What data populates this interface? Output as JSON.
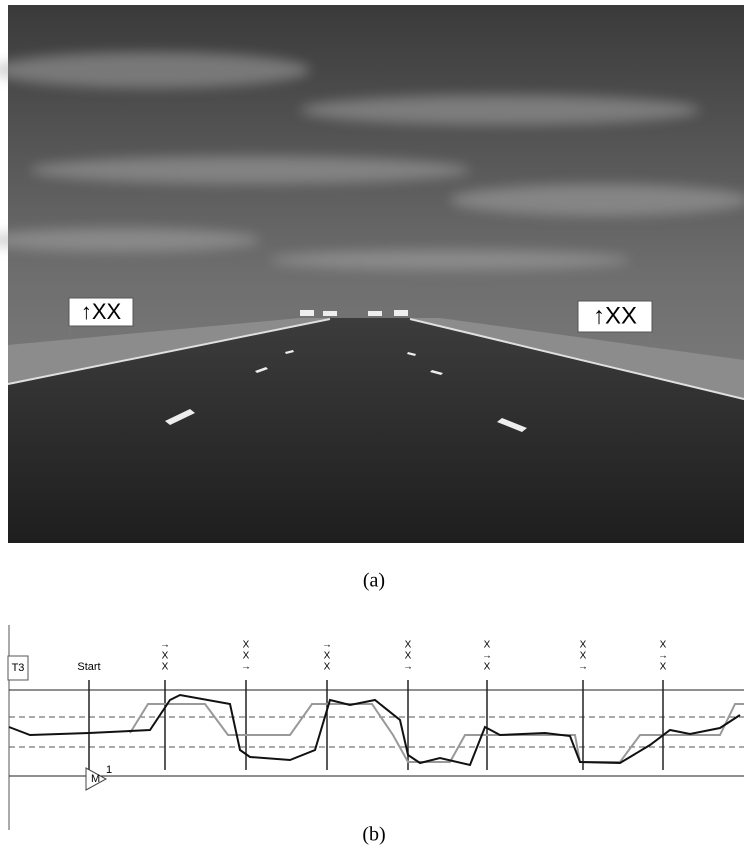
{
  "figure_a": {
    "caption": "(a)",
    "left_sign": "↑XX",
    "right_sign": "↑XX"
  },
  "figure_b": {
    "caption": "(b)",
    "track_label": "T3",
    "start_label": "Start",
    "marker_label": "M",
    "marker_number": "1",
    "lane_signals": [
      [
        "→",
        "X",
        "X"
      ],
      [
        "X",
        "X",
        "→"
      ],
      [
        "→",
        "X",
        "X"
      ],
      [
        "X",
        "X",
        "→"
      ],
      [
        "X",
        "→",
        "X"
      ],
      [
        "X",
        "X",
        "→"
      ],
      [
        "X",
        "→",
        "X"
      ]
    ]
  }
}
